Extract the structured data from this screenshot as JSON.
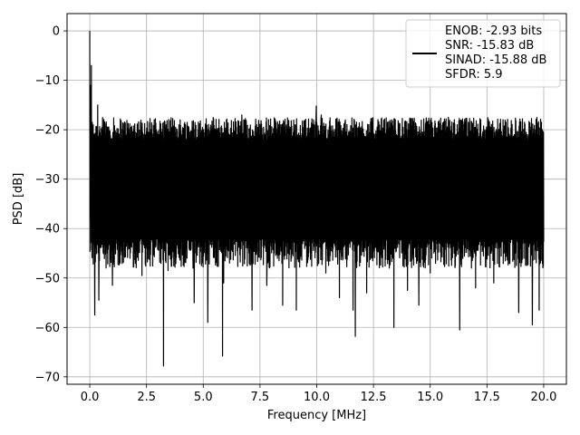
{
  "chart_data": {
    "type": "line",
    "xlabel": "Frequency [MHz]",
    "ylabel": "PSD [dB]",
    "xlim": [
      -1.0,
      21.0
    ],
    "ylim": [
      -71.5,
      3.5
    ],
    "xticks": [
      0.0,
      2.5,
      5.0,
      7.5,
      10.0,
      12.5,
      15.0,
      17.5,
      20.0
    ],
    "xtick_labels": [
      "0.0",
      "2.5",
      "5.0",
      "7.5",
      "10.0",
      "12.5",
      "15.0",
      "17.5",
      "20.0"
    ],
    "yticks": [
      0,
      -10,
      -20,
      -30,
      -40,
      -50,
      -60,
      -70
    ],
    "ytick_labels": [
      "0",
      "−10",
      "−20",
      "−30",
      "−40",
      "−50",
      "−60",
      "−70"
    ],
    "grid": true,
    "legend_position": "top-right",
    "line_color": "#000000",
    "series": [
      {
        "legend_lines": [
          "ENOB: -2.93 bits",
          "SNR: -15.83 dB",
          "SINAD: -15.88 dB",
          "SFDR: 5.9"
        ],
        "noise_floor": {
          "upper_envelope_db": -22.0,
          "lower_envelope_db": -42.0,
          "typical_top_db": -17.5,
          "typical_bottom_db": -48.0
        },
        "peaks": [
          {
            "x": 0.0,
            "y": 0.0
          },
          {
            "x": 0.03,
            "y": -11.0
          },
          {
            "x": 0.07,
            "y": -7.0
          },
          {
            "x": 0.15,
            "y": -19.0
          },
          {
            "x": 0.35,
            "y": -15.0
          },
          {
            "x": 9.98,
            "y": -15.2
          },
          {
            "x": 10.2,
            "y": -17.0
          },
          {
            "x": 6.7,
            "y": -17.0
          },
          {
            "x": 15.8,
            "y": -17.5
          },
          {
            "x": 13.3,
            "y": -18.0
          },
          {
            "x": 19.9,
            "y": -18.5
          }
        ],
        "dips": [
          {
            "x": 0.05,
            "y": -38.0
          },
          {
            "x": 0.22,
            "y": -57.5
          },
          {
            "x": 0.4,
            "y": -54.5
          },
          {
            "x": 1.0,
            "y": -51.5
          },
          {
            "x": 2.3,
            "y": -49.5
          },
          {
            "x": 3.25,
            "y": -67.8
          },
          {
            "x": 3.45,
            "y": -48.5
          },
          {
            "x": 4.55,
            "y": -48.0
          },
          {
            "x": 4.6,
            "y": -55.0
          },
          {
            "x": 5.2,
            "y": -59.0
          },
          {
            "x": 5.9,
            "y": -51.0
          },
          {
            "x": 5.85,
            "y": -65.8
          },
          {
            "x": 7.15,
            "y": -56.5
          },
          {
            "x": 7.8,
            "y": -51.5
          },
          {
            "x": 8.5,
            "y": -55.5
          },
          {
            "x": 9.1,
            "y": -56.5
          },
          {
            "x": 10.4,
            "y": -49.0
          },
          {
            "x": 11.0,
            "y": -54.0
          },
          {
            "x": 11.6,
            "y": -56.5
          },
          {
            "x": 11.7,
            "y": -61.8
          },
          {
            "x": 12.2,
            "y": -53.0
          },
          {
            "x": 13.4,
            "y": -60.0
          },
          {
            "x": 14.0,
            "y": -52.5
          },
          {
            "x": 14.5,
            "y": -55.5
          },
          {
            "x": 15.0,
            "y": -49.0
          },
          {
            "x": 15.8,
            "y": -52.0
          },
          {
            "x": 16.3,
            "y": -60.5
          },
          {
            "x": 17.0,
            "y": -52.0
          },
          {
            "x": 17.8,
            "y": -51.0
          },
          {
            "x": 18.9,
            "y": -57.0
          },
          {
            "x": 19.5,
            "y": -59.5
          },
          {
            "x": 19.8,
            "y": -56.5
          }
        ]
      }
    ]
  }
}
